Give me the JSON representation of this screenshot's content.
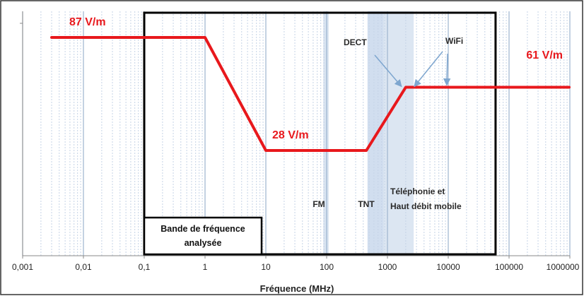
{
  "chart_data": {
    "type": "line",
    "title": "",
    "xlabel": "Fréquence (MHz)",
    "ylabel": "",
    "xscale": "log",
    "xlim": [
      0.001,
      1000000
    ],
    "x_tick_labels": [
      "0,001",
      "0,01",
      "0,1",
      "1",
      "10",
      "100",
      "1000",
      "10000",
      "100000",
      "1000000"
    ],
    "grid": true,
    "legend": "none",
    "colors": {
      "line": "#e8181c",
      "grid_major": "#9db3cf",
      "grid_minor": "#c5d3e6",
      "band": "#b9cde6",
      "arrow": "#7ea6cf",
      "frame": "#000000"
    },
    "series": [
      {
        "points": [
          {
            "x": 0.003,
            "y": 87
          },
          {
            "x": 1,
            "y": 87
          },
          {
            "x": 10,
            "y": 28
          },
          {
            "x": 450,
            "y": 28
          },
          {
            "x": 2000,
            "y": 61
          },
          {
            "x": 1000000,
            "y": 61
          }
        ]
      }
    ],
    "value_labels": [
      {
        "text": "87 V/m",
        "x": 0.003,
        "y": 87
      },
      {
        "text": "28 V/m",
        "x": 10,
        "y": 28
      },
      {
        "text": "61 V/m",
        "x": 1000000,
        "y": 61
      }
    ],
    "shaded_bands": [
      {
        "name": "FM",
        "from": 88,
        "to": 108
      },
      {
        "name": "TNT",
        "from": 470,
        "to": 862
      },
      {
        "name": "Téléphonie et Haut débit mobile",
        "from": 862,
        "to": 2700
      }
    ],
    "annotations": [
      {
        "text": "DECT"
      },
      {
        "text": "WiFi"
      },
      {
        "text": "FM"
      },
      {
        "text": "TNT"
      },
      {
        "text": "Téléphonie et"
      },
      {
        "text": "Haut débit mobile"
      }
    ],
    "analysis_box": {
      "from": 0.1,
      "to": 60000,
      "label_line1": "Bande de fréquence",
      "label_line2": "analysée"
    }
  }
}
